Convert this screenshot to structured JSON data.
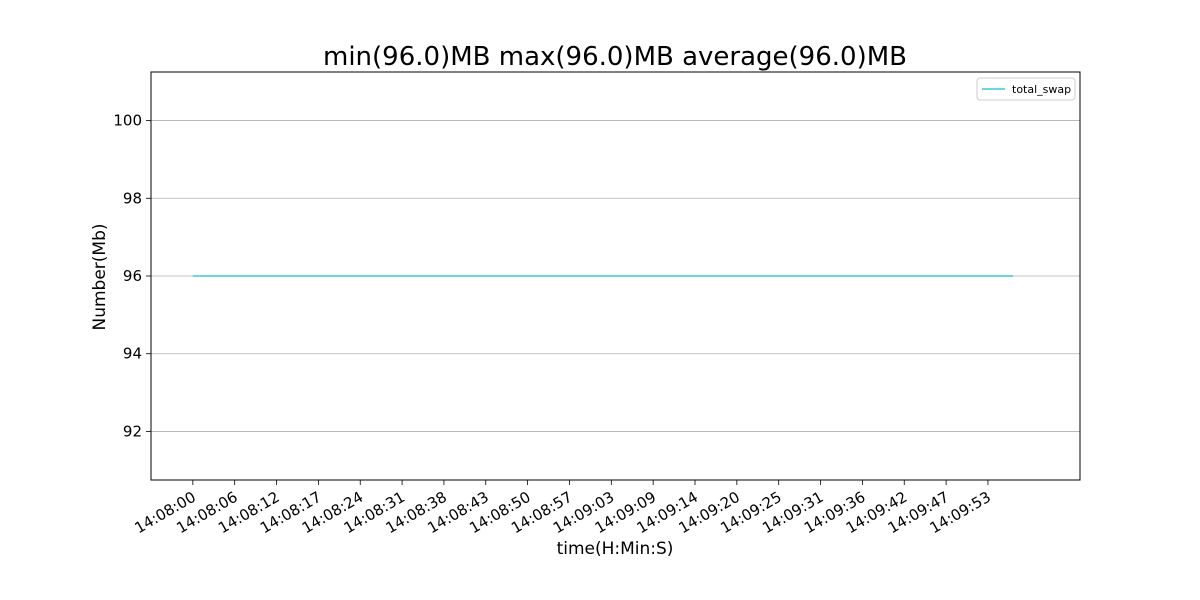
{
  "chart_data": {
    "type": "line",
    "title": "min(96.0)MB max(96.0)MB average(96.0)MB",
    "xlabel": "time(H:Min:S)",
    "ylabel": "Number(Mb)",
    "x_tick_labels": [
      "14:08:00",
      "14:08:06",
      "14:08:12",
      "14:08:17",
      "14:08:24",
      "14:08:31",
      "14:08:38",
      "14:08:43",
      "14:08:50",
      "14:08:57",
      "14:09:03",
      "14:09:09",
      "14:09:14",
      "14:09:20",
      "14:09:25",
      "14:09:31",
      "14:09:36",
      "14:09:42",
      "14:09:47",
      "14:09:53"
    ],
    "x_range": [
      -1,
      21.2
    ],
    "ylim": [
      90.75,
      101.25
    ],
    "y_ticks": [
      92,
      94,
      96,
      98,
      100
    ],
    "grid": "y-major",
    "legend_location": "upper right",
    "series": [
      {
        "name": "total_swap",
        "color": "#17becf",
        "x": [
          0,
          19.6
        ],
        "values": [
          96.0,
          96.0
        ]
      }
    ]
  }
}
